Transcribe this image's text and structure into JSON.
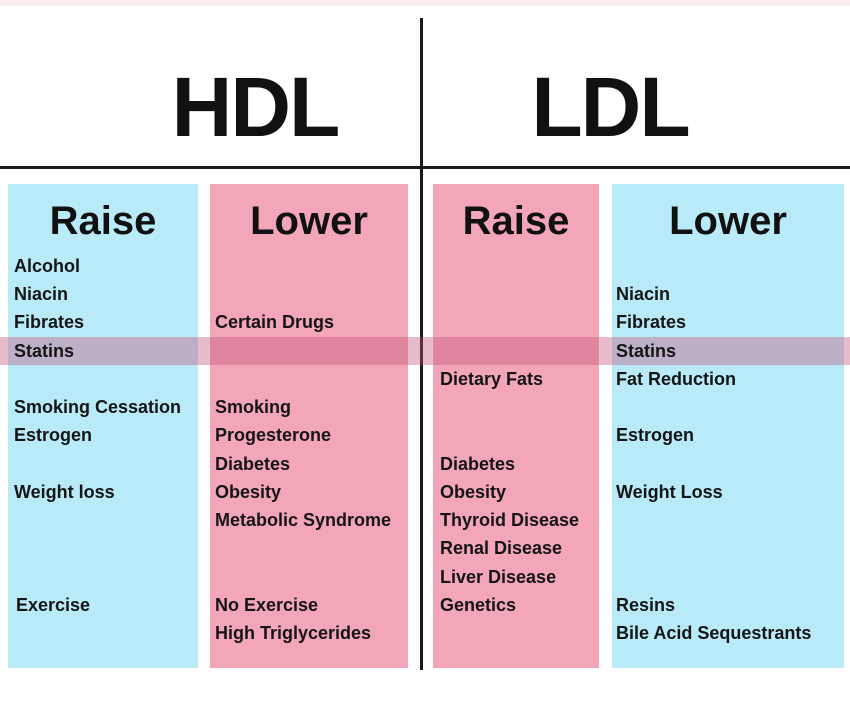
{
  "hdl": {
    "heading": "HDL",
    "raise": {
      "title": "Raise",
      "items": [
        "Alcohol",
        "Niacin",
        "Fibrates",
        "Statins",
        "Smoking Cessation",
        "Estrogen",
        "Weight loss",
        "Exercise"
      ]
    },
    "lower": {
      "title": "Lower",
      "items": [
        "Certain Drugs",
        "Smoking",
        "Progesterone",
        "Diabetes",
        "Obesity",
        "Metabolic Syndrome",
        "No Exercise",
        "High Triglycerides"
      ]
    }
  },
  "ldl": {
    "heading": "LDL",
    "raise": {
      "title": "Raise",
      "items": [
        "Dietary Fats",
        "Diabetes",
        "Obesity",
        "Thyroid Disease",
        "Renal Disease",
        "Liver Disease",
        "Genetics"
      ]
    },
    "lower": {
      "title": "Lower",
      "items": [
        "Niacin",
        "Fibrates",
        "Statins",
        "Fat Reduction",
        "Estrogen",
        "Weight Loss",
        "Resins",
        "Bile Acid Sequestrants"
      ]
    }
  },
  "colors": {
    "raise_hdl_lower_ldl": "#b8eaf8",
    "lower_hdl_raise_ldl": "#f2a6b8",
    "statins_highlight": "#c35073"
  }
}
